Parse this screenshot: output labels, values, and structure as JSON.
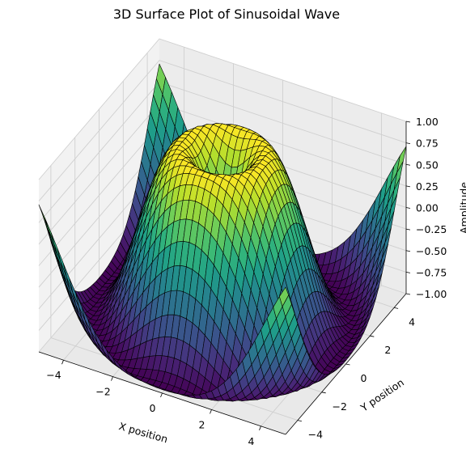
{
  "chart_data": {
    "type": "surface",
    "title": "3D Surface Plot of Sinusoidal Wave",
    "function": "z = sin(sqrt(x^2 + y^2))",
    "xlabel": "X position",
    "ylabel": "Y position",
    "zlabel": "Amplitude",
    "xlim": [
      -5,
      5
    ],
    "ylim": [
      -5,
      5
    ],
    "zlim": [
      -1,
      1
    ],
    "x_ticks": [
      "−4",
      "−2",
      "0",
      "2",
      "4"
    ],
    "y_ticks": [
      "−4",
      "−2",
      "0",
      "2",
      "4"
    ],
    "z_ticks": [
      "−1.00",
      "−0.75",
      "−0.50",
      "−0.25",
      "0.00",
      "0.25",
      "0.50",
      "0.75",
      "1.00"
    ],
    "x_tick_values": [
      -4,
      -2,
      0,
      2,
      4
    ],
    "y_tick_values": [
      -4,
      -2,
      0,
      2,
      4
    ],
    "z_tick_values": [
      -1,
      -0.75,
      -0.5,
      -0.25,
      0,
      0.25,
      0.5,
      0.75,
      1
    ],
    "colormap": "viridis",
    "edge_color": "#000000",
    "pane_color": "#f2f2f2",
    "grid": true
  }
}
